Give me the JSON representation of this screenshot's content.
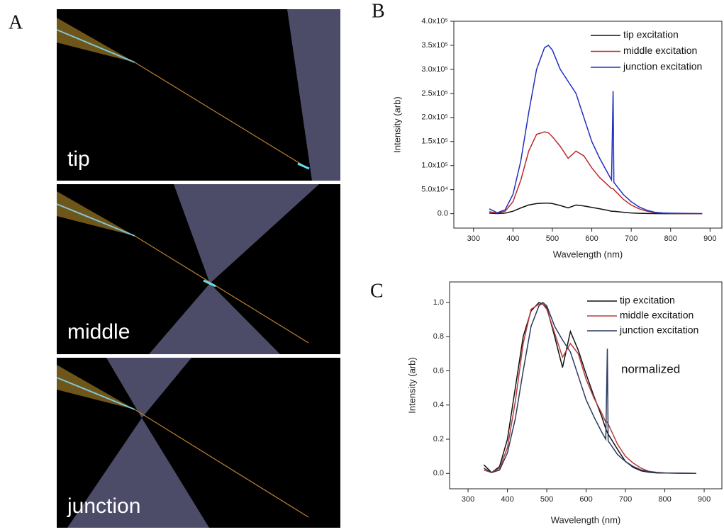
{
  "panel_a": {
    "label": "A",
    "captions": [
      "tip",
      "middle",
      "junction"
    ]
  },
  "chart_data": [
    {
      "type": "line",
      "label": "B",
      "xlabel": "Wavelength (nm)",
      "ylabel": "Intensity (arb)",
      "xlim": [
        250,
        930
      ],
      "xticks": [
        300,
        400,
        500,
        600,
        700,
        800,
        900
      ],
      "ylim": [
        -30000,
        400000
      ],
      "yticks": [
        {
          "value": 0,
          "label": "0.0"
        },
        {
          "value": 50000,
          "label": "5.0x10⁴"
        },
        {
          "value": 100000,
          "label": "1.0x10⁵"
        },
        {
          "value": 150000,
          "label": "1.5x10⁵"
        },
        {
          "value": 200000,
          "label": "2.0x10⁵"
        },
        {
          "value": 250000,
          "label": "2.5x10⁵"
        },
        {
          "value": 300000,
          "label": "3.0x10⁵"
        },
        {
          "value": 350000,
          "label": "3.5x10⁵"
        },
        {
          "value": 400000,
          "label": "4.0x10⁵"
        }
      ],
      "legend": "top-right",
      "x": [
        340,
        360,
        380,
        400,
        420,
        440,
        460,
        480,
        490,
        500,
        520,
        540,
        560,
        580,
        600,
        620,
        640,
        650,
        654,
        656,
        680,
        700,
        720,
        740,
        760,
        780,
        800,
        840,
        880
      ],
      "series": [
        {
          "name": "tip excitation",
          "color": "#111111",
          "values": [
            1000,
            200,
            1000,
            5000,
            12000,
            18000,
            21000,
            22000,
            22000,
            21000,
            17000,
            12000,
            18000,
            16000,
            13000,
            10000,
            7000,
            5000,
            5000,
            5000,
            3000,
            1500,
            800,
            400,
            200,
            100,
            50,
            0,
            0
          ]
        },
        {
          "name": "middle excitation",
          "color": "#c0282a",
          "values": [
            4000,
            1000,
            5000,
            25000,
            70000,
            130000,
            165000,
            170000,
            168000,
            160000,
            140000,
            115000,
            130000,
            120000,
            95000,
            75000,
            60000,
            52000,
            52000,
            50000,
            30000,
            18000,
            10000,
            5000,
            2000,
            1000,
            500,
            200,
            0
          ]
        },
        {
          "name": "junction excitation",
          "color": "#1f2fc0",
          "values": [
            10000,
            2000,
            8000,
            40000,
            110000,
            210000,
            300000,
            345000,
            350000,
            340000,
            300000,
            275000,
            250000,
            200000,
            150000,
            115000,
            85000,
            70000,
            255000,
            65000,
            40000,
            25000,
            14000,
            7000,
            3000,
            1500,
            1000,
            500,
            0
          ]
        }
      ]
    },
    {
      "type": "line",
      "label": "C",
      "xlabel": "Wavelength (nm)",
      "ylabel": "Intensity (arb)",
      "annotation": "normalized",
      "xlim": [
        253,
        945
      ],
      "xticks": [
        300,
        400,
        500,
        600,
        700,
        800,
        900
      ],
      "ylim": [
        -0.09,
        1.12
      ],
      "yticks": [
        {
          "value": 0,
          "label": "0.0"
        },
        {
          "value": 0.2,
          "label": "0.2"
        },
        {
          "value": 0.4,
          "label": "0.4"
        },
        {
          "value": 0.6,
          "label": "0.6"
        },
        {
          "value": 0.8,
          "label": "0.8"
        },
        {
          "value": 1,
          "label": "1.0"
        }
      ],
      "legend": "top-right",
      "x": [
        340,
        360,
        380,
        400,
        420,
        440,
        460,
        480,
        490,
        500,
        520,
        540,
        560,
        580,
        600,
        620,
        640,
        650,
        654,
        656,
        680,
        700,
        720,
        740,
        760,
        780,
        800,
        840,
        880
      ],
      "series": [
        {
          "name": "tip excitation",
          "color": "#111111",
          "values": [
            0.05,
            0.005,
            0.04,
            0.2,
            0.5,
            0.8,
            0.95,
            1.0,
            0.99,
            0.97,
            0.8,
            0.62,
            0.83,
            0.72,
            0.58,
            0.45,
            0.33,
            0.26,
            0.24,
            0.23,
            0.14,
            0.07,
            0.035,
            0.015,
            0.007,
            0.003,
            0.002,
            0.001,
            0
          ]
        },
        {
          "name": "middle excitation",
          "color": "#b83a3a",
          "values": [
            0.02,
            0.005,
            0.03,
            0.15,
            0.42,
            0.76,
            0.96,
            0.99,
            0.99,
            0.96,
            0.82,
            0.68,
            0.76,
            0.7,
            0.55,
            0.44,
            0.35,
            0.3,
            0.3,
            0.29,
            0.17,
            0.1,
            0.06,
            0.03,
            0.012,
            0.006,
            0.003,
            0.001,
            0
          ]
        },
        {
          "name": "junction excitation",
          "color": "#2a3a60",
          "values": [
            0.03,
            0.005,
            0.02,
            0.12,
            0.32,
            0.6,
            0.86,
            0.98,
            1.0,
            0.98,
            0.86,
            0.78,
            0.71,
            0.57,
            0.43,
            0.33,
            0.24,
            0.2,
            0.73,
            0.19,
            0.11,
            0.07,
            0.04,
            0.02,
            0.01,
            0.004,
            0.003,
            0.001,
            0
          ]
        }
      ]
    }
  ]
}
